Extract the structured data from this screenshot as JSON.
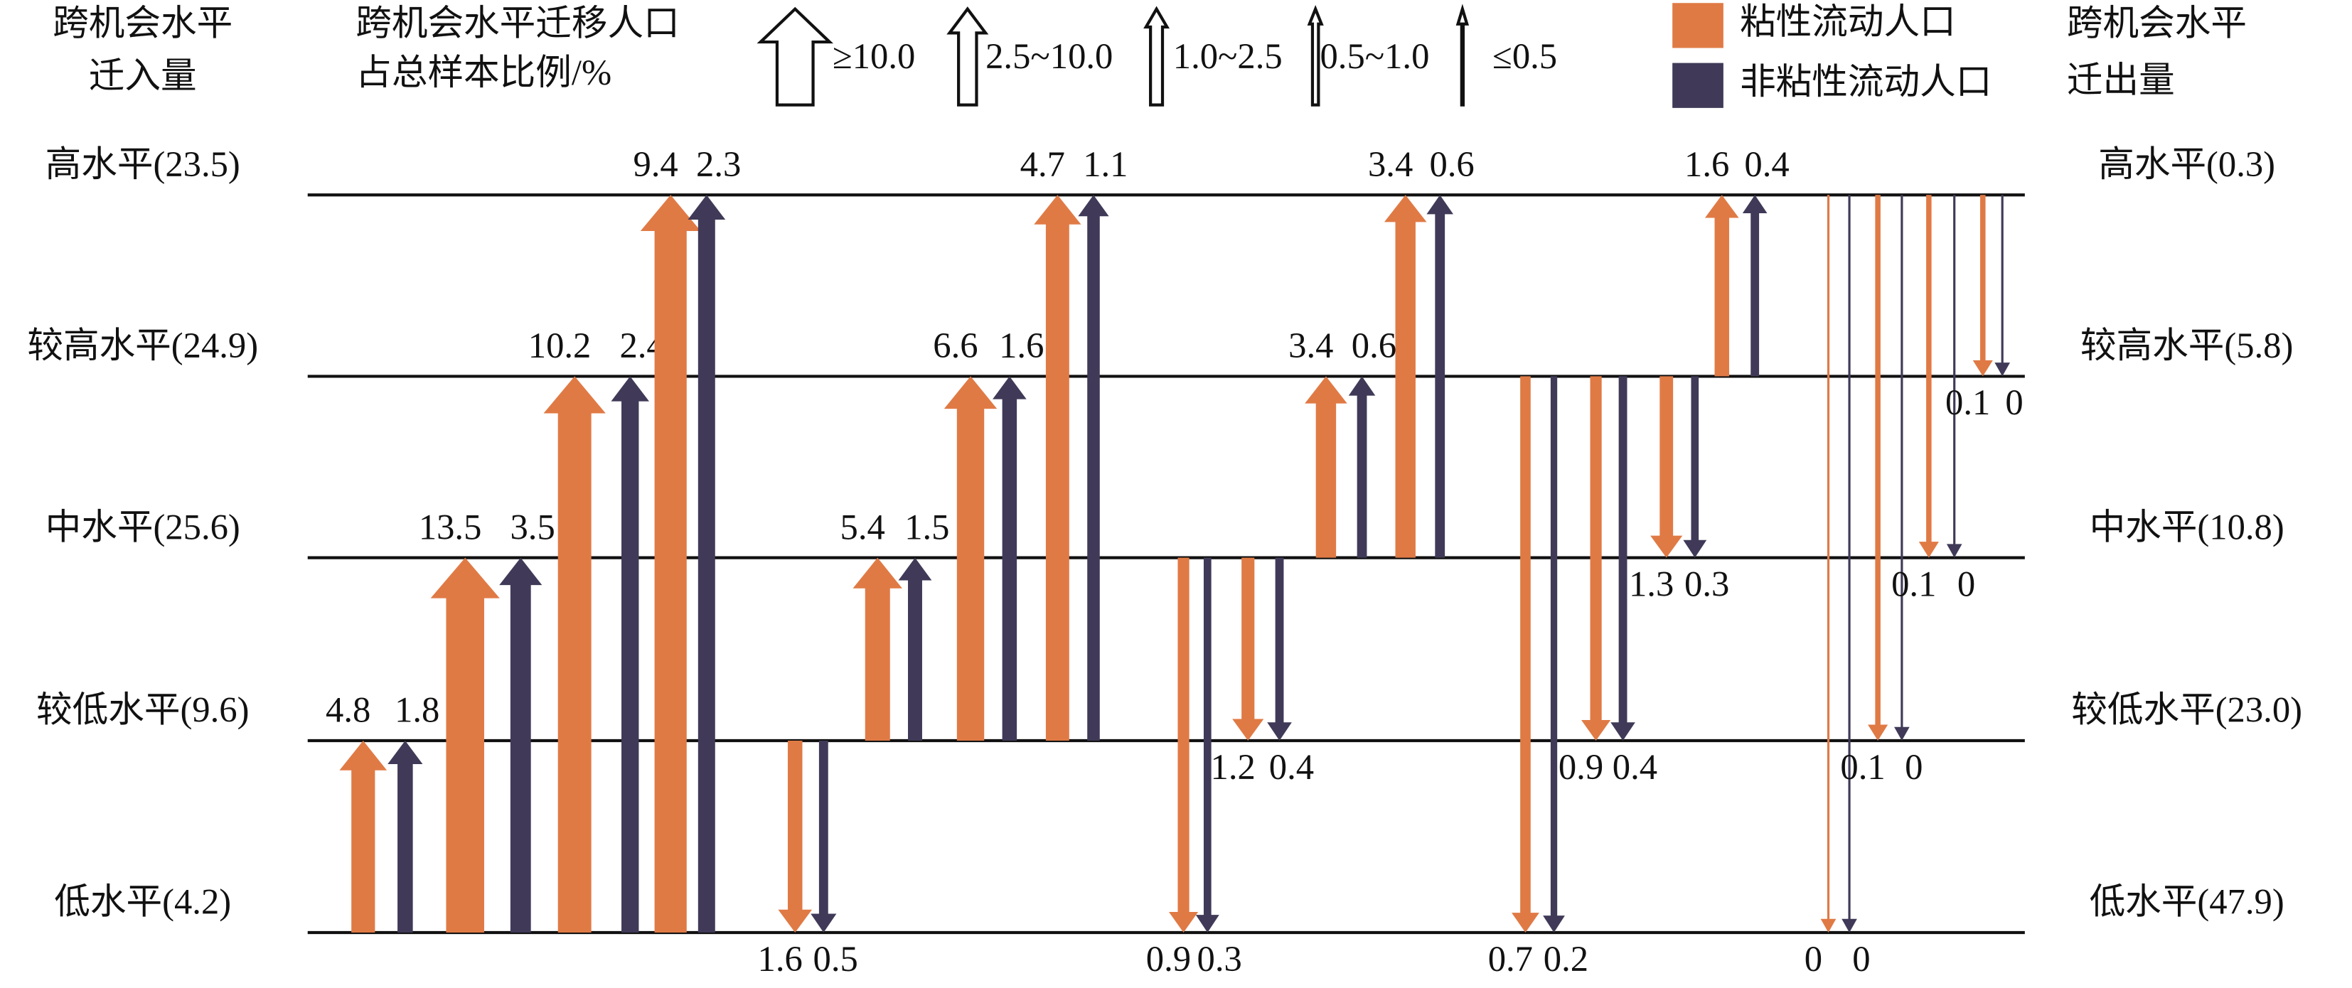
{
  "left_title": [
    "跨机会水平",
    "迁入量"
  ],
  "right_title": [
    "跨机会水平",
    "迁出量"
  ],
  "legend_title": [
    "跨机会水平迁移人口",
    "占总样本比例/%"
  ],
  "width_legend": [
    "≥10.0",
    "2.5~10.0",
    "1.0~2.5",
    "0.5~1.0",
    "≤0.5"
  ],
  "series": [
    {
      "name": "粘性流动人口",
      "color": "#e07a45"
    },
    {
      "name": "非粘性流动人口",
      "color": "#403a58"
    }
  ],
  "levels": [
    {
      "in": "高水平(23.5)",
      "out": "高水平(0.3)",
      "flows": [
        [
          0,
          0
        ],
        [
          0.1,
          0
        ],
        [
          0.1,
          0
        ],
        [
          0.1,
          0
        ]
      ]
    },
    {
      "in": "较高水平(24.9)",
      "out": "较高水平(5.8)",
      "flows": [
        [
          0.7,
          0.2
        ],
        [
          0.9,
          0.4
        ],
        [
          1.3,
          0.3
        ],
        [
          1.6,
          0.4
        ]
      ]
    },
    {
      "in": "中水平(25.6)",
      "out": "中水平(10.8)",
      "flows": [
        [
          0.9,
          0.3
        ],
        [
          1.2,
          0.4
        ],
        [
          3.4,
          0.6
        ],
        [
          3.4,
          0.6
        ]
      ]
    },
    {
      "in": "较低水平(9.6)",
      "out": "较低水平(23.0)",
      "flows": [
        [
          1.6,
          0.5
        ],
        [
          5.4,
          1.5
        ],
        [
          6.6,
          1.6
        ],
        [
          4.7,
          1.1
        ]
      ]
    },
    {
      "in": "低水平(4.2)",
      "out": "低水平(47.9)",
      "flows": [
        [
          4.8,
          1.8
        ],
        [
          13.5,
          3.5
        ],
        [
          10.2,
          2.4
        ],
        [
          9.4,
          2.3
        ]
      ]
    }
  ]
}
